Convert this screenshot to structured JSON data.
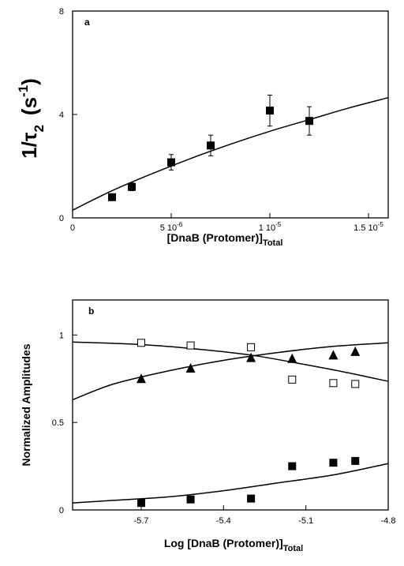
{
  "chart_data": [
    {
      "type": "scatter",
      "panel_label": "a",
      "ylabel": {
        "main": "1/τ",
        "sub": "2",
        "unit_open": "(s",
        "unit_sup": "-1",
        "unit_close": ")"
      },
      "xlabel": {
        "main": "[DnaB (Protomer)]",
        "sub": "Total"
      },
      "xlim": [
        0,
        1.6e-05
      ],
      "ylim": [
        0,
        8
      ],
      "xticks": [
        {
          "value": 0,
          "base": "0",
          "exp": ""
        },
        {
          "value": 5e-06,
          "base": "5 10",
          "exp": "-6"
        },
        {
          "value": 1e-05,
          "base": "1 10",
          "exp": "-5"
        },
        {
          "value": 1.5e-05,
          "base": "1.5 10",
          "exp": "-5"
        }
      ],
      "yticks": [
        {
          "value": 0,
          "label": "0"
        },
        {
          "value": 4,
          "label": "4"
        },
        {
          "value": 8,
          "label": "8"
        }
      ],
      "series": [
        {
          "marker": "filled-square",
          "points": [
            {
              "x": 2e-06,
              "y": 0.8,
              "err": 0
            },
            {
              "x": 3e-06,
              "y": 1.2,
              "err": 0.15
            },
            {
              "x": 5e-06,
              "y": 2.15,
              "err": 0.3
            },
            {
              "x": 7e-06,
              "y": 2.8,
              "err": 0.4
            },
            {
              "x": 1e-05,
              "y": 4.15,
              "err": 0.6
            },
            {
              "x": 1.2e-05,
              "y": 3.75,
              "err": 0.55
            }
          ]
        }
      ],
      "fit_curve": {
        "x": [
          0,
          2e-06,
          4e-06,
          6e-06,
          8e-06,
          1e-05,
          1.2e-05,
          1.4e-05,
          1.6e-05
        ],
        "y": [
          0.3,
          1.05,
          1.7,
          2.3,
          2.85,
          3.35,
          3.8,
          4.25,
          4.65
        ]
      }
    },
    {
      "type": "scatter",
      "panel_label": "b",
      "ylabel": "Normalized Amplitudes",
      "xlabel": {
        "main": "Log [DnaB (Protomer)]",
        "sub": "Total"
      },
      "xlim": [
        -5.95,
        -4.8
      ],
      "ylim": [
        0,
        1.2
      ],
      "xticks": [
        {
          "value": -5.7,
          "label": "-5.7"
        },
        {
          "value": -5.4,
          "label": "-5.4"
        },
        {
          "value": -5.1,
          "label": "-5.1"
        },
        {
          "value": -4.8,
          "label": "-4.8"
        }
      ],
      "yticks": [
        {
          "value": 0,
          "label": "0"
        },
        {
          "value": 0.5,
          "label": "0.5"
        },
        {
          "value": 1,
          "label": "1"
        }
      ],
      "series": [
        {
          "marker": "open-square",
          "points": [
            {
              "x": -5.7,
              "y": 0.955
            },
            {
              "x": -5.52,
              "y": 0.94
            },
            {
              "x": -5.3,
              "y": 0.93
            },
            {
              "x": -5.15,
              "y": 0.745
            },
            {
              "x": -5.0,
              "y": 0.725
            },
            {
              "x": -4.92,
              "y": 0.72
            }
          ],
          "fit_curve": {
            "x": [
              -5.95,
              -5.7,
              -5.5,
              -5.3,
              -5.1,
              -4.95,
              -4.8
            ],
            "y": [
              0.96,
              0.945,
              0.92,
              0.885,
              0.83,
              0.785,
              0.735
            ]
          }
        },
        {
          "marker": "filled-triangle",
          "points": [
            {
              "x": -5.7,
              "y": 0.75
            },
            {
              "x": -5.52,
              "y": 0.81
            },
            {
              "x": -5.3,
              "y": 0.87
            },
            {
              "x": -5.15,
              "y": 0.865
            },
            {
              "x": -5.0,
              "y": 0.885
            },
            {
              "x": -4.92,
              "y": 0.905
            }
          ],
          "fit_curve": {
            "x": [
              -5.95,
              -5.8,
              -5.6,
              -5.4,
              -5.2,
              -5.0,
              -4.8
            ],
            "y": [
              0.63,
              0.72,
              0.795,
              0.855,
              0.9,
              0.935,
              0.955
            ]
          }
        },
        {
          "marker": "filled-square",
          "points": [
            {
              "x": -5.7,
              "y": 0.04
            },
            {
              "x": -5.52,
              "y": 0.06
            },
            {
              "x": -5.3,
              "y": 0.065
            },
            {
              "x": -5.15,
              "y": 0.25
            },
            {
              "x": -5.0,
              "y": 0.27
            },
            {
              "x": -4.92,
              "y": 0.28
            }
          ],
          "fit_curve": {
            "x": [
              -5.95,
              -5.8,
              -5.6,
              -5.4,
              -5.2,
              -5.0,
              -4.8
            ],
            "y": [
              0.04,
              0.055,
              0.075,
              0.11,
              0.155,
              0.2,
              0.265
            ]
          }
        }
      ]
    }
  ]
}
